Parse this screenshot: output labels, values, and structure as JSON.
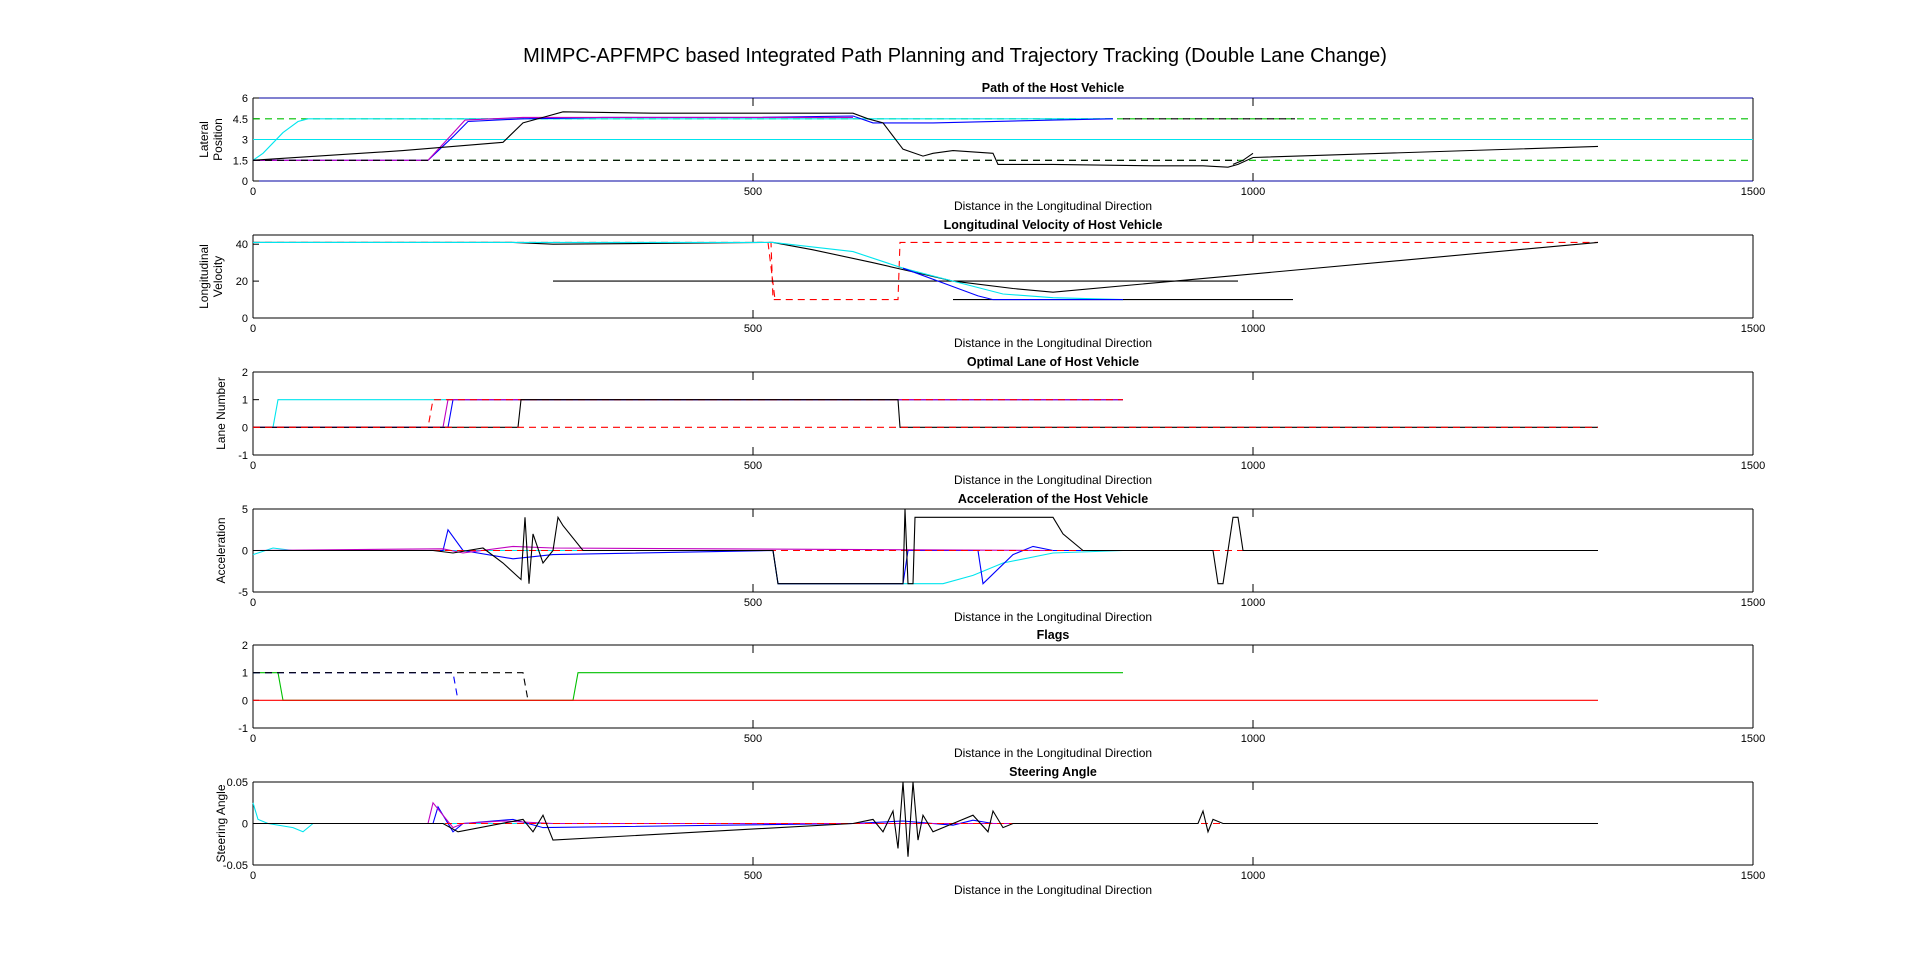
{
  "figure_title": "MIMPC-APFMPC based Integrated Path Planning and Trajectory Tracking (Double Lane Change)",
  "colors": {
    "axis": "#000000",
    "dark_blue_axis": "#0000a0",
    "red_dash": "#ff0000",
    "green_dash": "#00c000",
    "cyan": "#00e5ee",
    "blue": "#0000ff",
    "magenta": "#c000c0",
    "black": "#000000"
  },
  "chart_data": [
    {
      "type": "line",
      "title": "Path of the Host Vehicle",
      "xlabel": "Distance in the Longitudinal Direction",
      "ylabel": [
        "Lateral",
        "Position"
      ],
      "xlim": [
        0,
        1500
      ],
      "ylim": [
        0,
        6
      ],
      "xticks": [
        "0",
        "500",
        "1000",
        "1500"
      ],
      "yticks": [
        "0",
        "1.5",
        "3",
        "4.5",
        "6"
      ],
      "series": [
        {
          "color": "#00c000",
          "dash": true,
          "x": [
            0,
            1500
          ],
          "y": [
            4.5,
            4.5
          ]
        },
        {
          "color": "#00c000",
          "dash": true,
          "x": [
            0,
            1500
          ],
          "y": [
            1.5,
            1.5
          ]
        },
        {
          "color": "#00e5ee",
          "x": [
            0,
            1500
          ],
          "y": [
            3,
            3
          ]
        },
        {
          "color": "#00e5ee",
          "x": [
            0,
            10,
            30,
            45,
            55,
            860
          ],
          "y": [
            1.5,
            2.0,
            3.5,
            4.3,
            4.5,
            4.5
          ]
        },
        {
          "color": "#0000ff",
          "x": [
            0,
            175,
            200,
            215,
            270,
            350,
            500,
            600,
            620,
            680,
            800,
            860
          ],
          "y": [
            1.5,
            1.5,
            3.2,
            4.3,
            4.5,
            4.6,
            4.6,
            4.7,
            4.2,
            4.2,
            4.4,
            4.5
          ]
        },
        {
          "color": "#c000c0",
          "x": [
            0,
            175,
            198,
            212,
            270,
            350,
            500,
            600
          ],
          "y": [
            1.5,
            1.5,
            3.3,
            4.4,
            4.6,
            4.6,
            4.6,
            4.6
          ]
        },
        {
          "color": "#000000",
          "x": [
            0,
            150,
            250,
            270,
            290,
            310,
            400,
            600,
            615,
            630,
            650,
            670,
            680,
            700,
            740,
            745,
            800,
            900,
            950,
            975,
            985,
            1000,
            1345
          ],
          "y": [
            1.5,
            2.2,
            2.8,
            4.2,
            4.6,
            5.0,
            4.9,
            4.9,
            4.5,
            4.2,
            2.3,
            1.8,
            2.0,
            2.2,
            2.0,
            1.2,
            1.2,
            1.1,
            1.1,
            1.0,
            1.2,
            1.7,
            2.5
          ]
        },
        {
          "color": "#000000",
          "x": [
            980,
            990,
            1000
          ],
          "y": [
            1.2,
            1.5,
            2.0
          ]
        },
        {
          "color": "#000000",
          "dash": true,
          "x": [
            870,
            1042
          ],
          "y": [
            4.5,
            4.5
          ]
        },
        {
          "color": "#000000",
          "dash": true,
          "x": [
            0,
            985
          ],
          "y": [
            1.5,
            1.5
          ]
        }
      ]
    },
    {
      "type": "line",
      "title": "Longitudinal Velocity of Host Vehicle",
      "xlabel": "Distance in the Longitudinal Direction",
      "ylabel": [
        "Longitudinal",
        "Velocity"
      ],
      "xlim": [
        0,
        1500
      ],
      "ylim": [
        0,
        45
      ],
      "xticks": [
        "0",
        "500",
        "1000",
        "1500"
      ],
      "yticks": [
        "0",
        "20",
        "40"
      ],
      "series": [
        {
          "color": "#ff0000",
          "dash": true,
          "x": [
            0,
            518,
            520,
            645,
            647,
            1345
          ],
          "y": [
            41,
            41,
            10,
            10,
            41,
            41
          ]
        },
        {
          "color": "#ff0000",
          "dash": true,
          "x": [
            515,
            522
          ],
          "y": [
            41,
            10
          ]
        },
        {
          "color": "#000000",
          "x": [
            0,
            260,
            300,
            520,
            560,
            620,
            660,
            700,
            760,
            800,
            1345
          ],
          "y": [
            41,
            41,
            40,
            41,
            37,
            30,
            25,
            20,
            16,
            14,
            41
          ]
        },
        {
          "color": "#000000",
          "x": [
            300,
            985
          ],
          "y": [
            20,
            20
          ]
        },
        {
          "color": "#000000",
          "x": [
            700,
            1040
          ],
          "y": [
            10,
            10
          ]
        },
        {
          "color": "#00e5ee",
          "x": [
            0,
            520,
            600,
            650,
            700,
            750,
            800,
            870
          ],
          "y": [
            41,
            41,
            36,
            27,
            20,
            13,
            11,
            10
          ]
        },
        {
          "color": "#0000ff",
          "x": [
            650,
            700,
            725,
            740,
            870
          ],
          "y": [
            27,
            17,
            12,
            10,
            10
          ]
        }
      ]
    },
    {
      "type": "line",
      "title": "Optimal Lane of Host Vehicle",
      "xlabel": "Distance in the Longitudinal Direction",
      "ylabel": [
        "Lane Number"
      ],
      "xlim": [
        0,
        1500
      ],
      "ylim": [
        -1,
        2
      ],
      "xticks": [
        "0",
        "500",
        "1000",
        "1500"
      ],
      "yticks": [
        "-1",
        "0",
        "1",
        "2"
      ],
      "series": [
        {
          "color": "#00e5ee",
          "x": [
            0,
            20,
            25,
            870
          ],
          "y": [
            0,
            0,
            1,
            1
          ]
        },
        {
          "color": "#0000ff",
          "x": [
            0,
            195,
            200,
            870
          ],
          "y": [
            0,
            0,
            1,
            1
          ]
        },
        {
          "color": "#c000c0",
          "x": [
            0,
            190,
            195,
            870
          ],
          "y": [
            0,
            0,
            1,
            1
          ]
        },
        {
          "color": "#ff0000",
          "dash": true,
          "x": [
            0,
            175,
            180,
            870
          ],
          "y": [
            0,
            0,
            1,
            1
          ]
        },
        {
          "color": "#000000",
          "x": [
            0,
            265,
            268,
            645,
            647,
            1345
          ],
          "y": [
            0,
            0,
            1,
            1,
            0,
            0
          ]
        },
        {
          "color": "#ff0000",
          "dash": true,
          "x": [
            0,
            1345
          ],
          "y": [
            0,
            0
          ]
        }
      ]
    },
    {
      "type": "line",
      "title": "Acceleration of the Host Vehicle",
      "xlabel": "Distance in the Longitudinal Direction",
      "ylabel": [
        "Acceleration"
      ],
      "xlim": [
        0,
        1500
      ],
      "ylim": [
        -5,
        5
      ],
      "xticks": [
        "0",
        "500",
        "1000",
        "1500"
      ],
      "yticks": [
        "-5",
        "0",
        "5"
      ],
      "series": [
        {
          "color": "#00e5ee",
          "x": [
            0,
            20,
            40,
            520,
            525,
            690,
            720,
            750,
            800,
            870
          ],
          "y": [
            -0.5,
            0.3,
            0,
            0,
            -4,
            -4,
            -3,
            -1.5,
            -0.3,
            0
          ]
        },
        {
          "color": "#0000ff",
          "x": [
            0,
            190,
            195,
            210,
            260,
            300,
            520,
            525,
            650,
            655,
            725,
            730,
            760,
            780,
            800,
            870
          ],
          "y": [
            0,
            0,
            2.5,
            0,
            -1,
            -0.5,
            0,
            -4,
            -4,
            0,
            0,
            -4,
            -0.5,
            0.5,
            0,
            0
          ]
        },
        {
          "color": "#c000c0",
          "x": [
            0,
            190,
            210,
            260,
            300,
            800
          ],
          "y": [
            0,
            0.2,
            -0.3,
            0.5,
            0.3,
            0
          ]
        },
        {
          "color": "#ff0000",
          "dash": true,
          "x": [
            0,
            1345
          ],
          "y": [
            0,
            0
          ]
        },
        {
          "color": "#000000",
          "x": [
            0,
            180,
            200,
            230,
            250,
            268,
            272,
            276,
            280,
            290,
            300,
            305,
            310,
            330,
            520,
            525,
            650,
            652,
            655,
            660,
            662,
            800,
            810,
            830,
            960,
            965,
            970,
            980,
            985,
            990,
            1345
          ],
          "y": [
            0,
            0,
            -0.3,
            0.3,
            -1.5,
            -3.5,
            4,
            -4,
            2,
            -1.5,
            0,
            4,
            3,
            0,
            0,
            -4,
            -4,
            5,
            -4,
            -4,
            4,
            4,
            2,
            0,
            0,
            -4,
            -4,
            4,
            4,
            0,
            0
          ]
        }
      ]
    },
    {
      "type": "line",
      "title": "Flags",
      "xlabel": "Distance in the Longitudinal Direction",
      "ylabel": [],
      "xlim": [
        0,
        1500
      ],
      "ylim": [
        -1,
        2
      ],
      "xticks": [
        "0",
        "500",
        "1000",
        "1500"
      ],
      "yticks": [
        "-1",
        "0",
        "1",
        "2"
      ],
      "series": [
        {
          "color": "#00c000",
          "x": [
            0,
            25,
            30,
            320,
            325,
            870
          ],
          "y": [
            1,
            1,
            0,
            0,
            1,
            1
          ]
        },
        {
          "color": "#0000ff",
          "dash": true,
          "x": [
            0,
            200,
            205
          ],
          "y": [
            1,
            1,
            0
          ]
        },
        {
          "color": "#ff0000",
          "x": [
            0,
            1345
          ],
          "y": [
            0,
            0
          ]
        },
        {
          "color": "#000000",
          "dash": true,
          "x": [
            0,
            270,
            275
          ],
          "y": [
            1,
            1,
            0
          ]
        }
      ]
    },
    {
      "type": "line",
      "title": "Steering Angle",
      "xlabel": "Distance in the Longitudinal Direction",
      "ylabel": [
        "Steering Angle"
      ],
      "xlim": [
        0,
        1500
      ],
      "ylim": [
        -0.05,
        0.05
      ],
      "xticks": [
        "0",
        "500",
        "1000",
        "1500"
      ],
      "yticks": [
        "-0.05",
        "0",
        "0.05"
      ],
      "series": [
        {
          "color": "#00e5ee",
          "x": [
            0,
            5,
            15,
            40,
            50,
            60,
            870
          ],
          "y": [
            0.025,
            0.005,
            0,
            -0.005,
            -0.01,
            0,
            0
          ]
        },
        {
          "color": "#0000ff",
          "x": [
            0,
            180,
            185,
            200,
            210,
            260,
            290,
            600,
            650,
            700,
            720,
            740,
            870
          ],
          "y": [
            0,
            0,
            0.02,
            -0.01,
            0,
            0.005,
            -0.005,
            0,
            0.003,
            -0.002,
            0.004,
            0,
            0
          ]
        },
        {
          "color": "#c000c0",
          "x": [
            0,
            175,
            180,
            200,
            210,
            250,
            300,
            870
          ],
          "y": [
            0,
            0,
            0.025,
            -0.005,
            0,
            0.003,
            0,
            0
          ]
        },
        {
          "color": "#ff0000",
          "dash": true,
          "x": [
            0,
            1345
          ],
          "y": [
            0,
            0
          ]
        },
        {
          "color": "#000000",
          "x": [
            0,
            190,
            205,
            270,
            280,
            290,
            300,
            600,
            620,
            630,
            640,
            645,
            650,
            655,
            660,
            665,
            670,
            680,
            700,
            720,
            735,
            740,
            750,
            760,
            945,
            950,
            955,
            960,
            970,
            1345
          ],
          "y": [
            0,
            0,
            -0.01,
            0.005,
            -0.01,
            0.01,
            -0.02,
            0,
            0.005,
            -0.01,
            0.015,
            -0.03,
            0.05,
            -0.04,
            0.05,
            -0.02,
            0.01,
            -0.01,
            0,
            0.01,
            -0.01,
            0.015,
            -0.005,
            0,
            0,
            0.015,
            -0.01,
            0.005,
            0,
            0
          ]
        }
      ]
    }
  ]
}
